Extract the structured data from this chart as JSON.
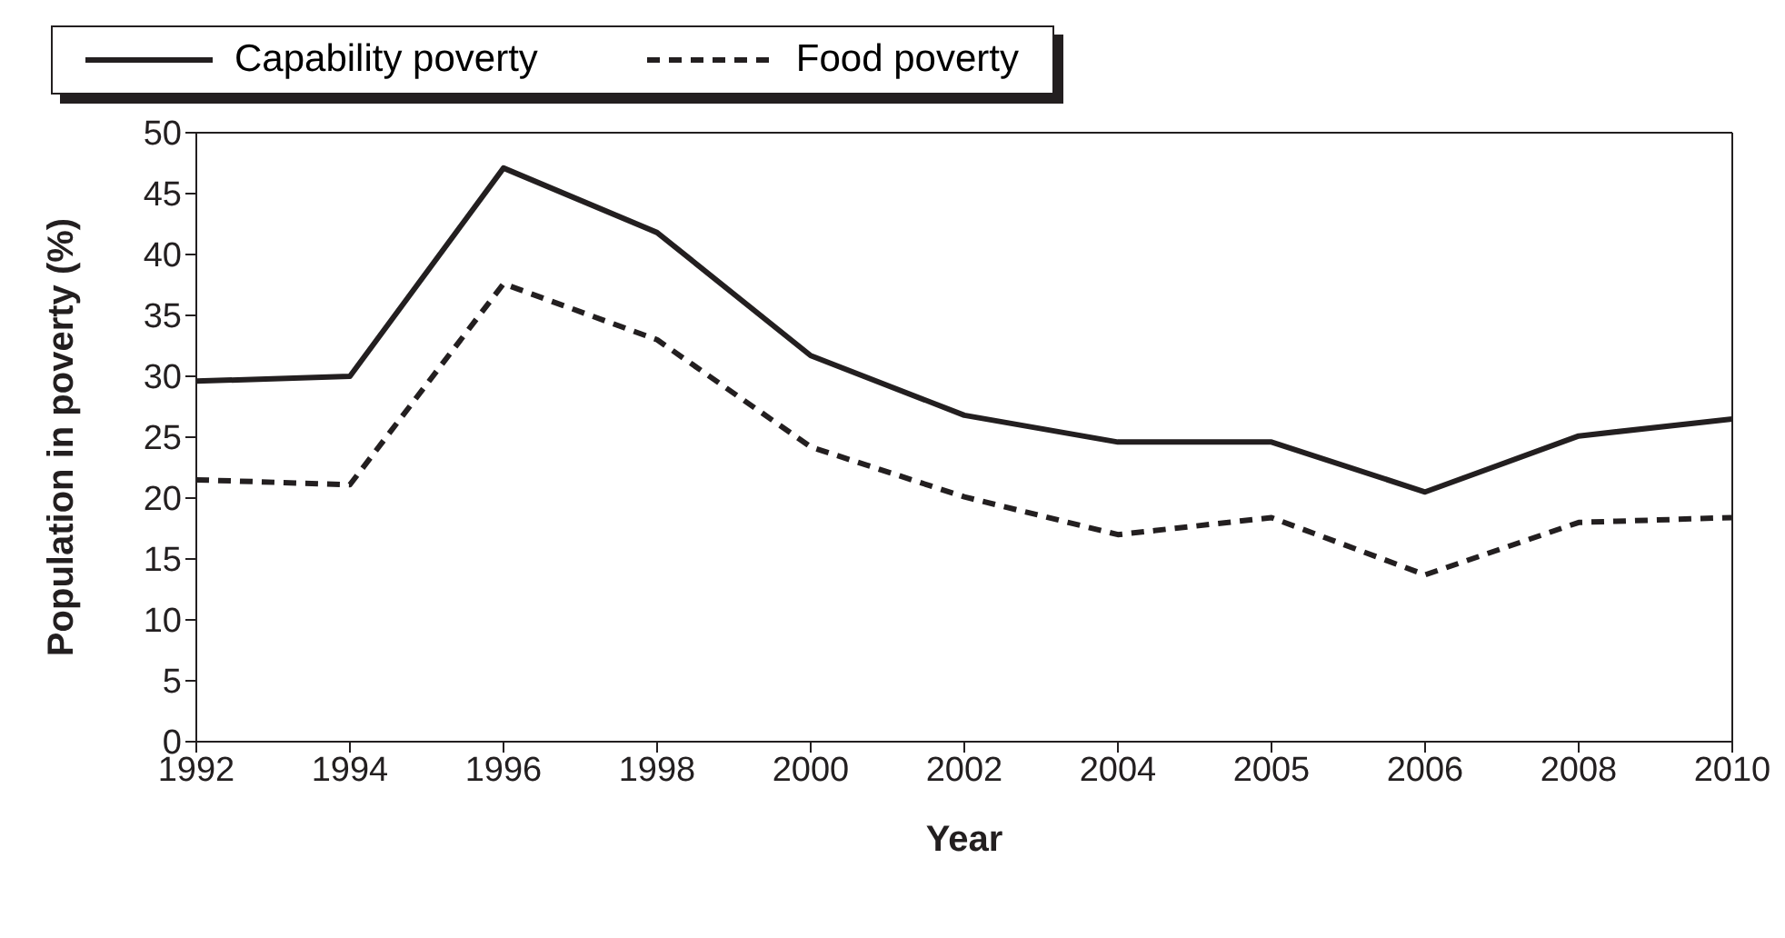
{
  "chart_data": {
    "type": "line",
    "xlabel": "Year",
    "ylabel": "Population in poverty (%)",
    "categories": [
      "1992",
      "1994",
      "1996",
      "1998",
      "2000",
      "2002",
      "2004",
      "2005",
      "2006",
      "2008",
      "2010"
    ],
    "series": [
      {
        "name": "Capability poverty",
        "color": "#231f20",
        "line_style": "solid",
        "values": [
          29.6,
          30.0,
          47.1,
          41.8,
          31.7,
          26.8,
          24.6,
          24.6,
          20.5,
          25.1,
          26.5
        ]
      },
      {
        "name": "Food poverty",
        "color": "#231f20",
        "line_style": "dashed",
        "values": [
          21.5,
          21.1,
          37.6,
          33.0,
          24.2,
          20.1,
          17.0,
          18.4,
          13.7,
          18.0,
          18.4
        ]
      }
    ],
    "ylim": [
      0,
      50
    ],
    "yticks": [
      0,
      5,
      10,
      15,
      20,
      25,
      30,
      35,
      40,
      45,
      50
    ],
    "legend": "top",
    "marker": "none"
  }
}
